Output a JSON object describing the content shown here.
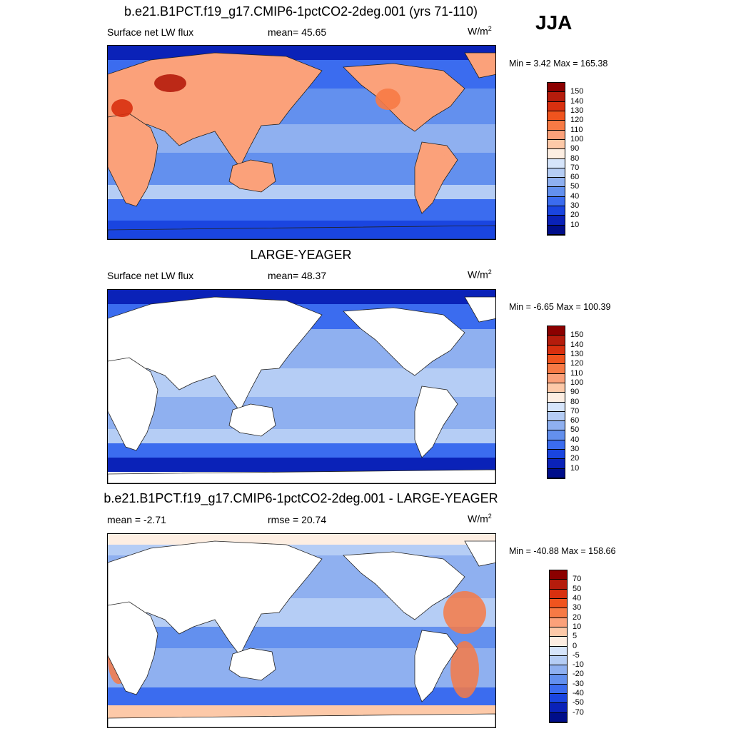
{
  "season": "JJA",
  "panels": [
    {
      "id": "model",
      "title": "b.e21.B1PCT.f19_g17.CMIP6-1pctCO2-2deg.001 (yrs 71-110)",
      "left_label": "Surface net LW flux",
      "center_label": "mean=  45.65",
      "units_base": "W/m",
      "units_exp": "2",
      "minmax": "Min =   3.42 Max = 165.38",
      "land_masked": false
    },
    {
      "id": "obs",
      "title": "LARGE-YEAGER",
      "left_label": "Surface net LW flux",
      "center_label": "mean=  48.37",
      "units_base": "W/m",
      "units_exp": "2",
      "minmax": "Min =  -6.65 Max = 100.39",
      "land_masked": true
    },
    {
      "id": "diff",
      "title": "b.e21.B1PCT.f19_g17.CMIP6-1pctCO2-2deg.001 - LARGE-YEAGER",
      "left_label": "mean =  -2.71",
      "center_label": "rmse =  20.74",
      "units_base": "W/m",
      "units_exp": "2",
      "minmax": "Min = -40.88 Max = 158.66",
      "land_masked": true
    }
  ],
  "colorbars": {
    "absolute": {
      "labels": [
        "150",
        "140",
        "130",
        "120",
        "110",
        "100",
        "90",
        "80",
        "70",
        "60",
        "50",
        "40",
        "30",
        "20",
        "10"
      ],
      "colors": [
        "#8b0000",
        "#b51c0c",
        "#d8300f",
        "#f0541e",
        "#f77a45",
        "#fba17a",
        "#fdc9a8",
        "#fdeee2",
        "#d6e5fb",
        "#b5cdf5",
        "#8fb0f0",
        "#6390ee",
        "#3b6cef",
        "#1a45e0",
        "#0a22b8",
        "#000e8a"
      ]
    },
    "difference": {
      "labels": [
        "70",
        "50",
        "40",
        "30",
        "20",
        "10",
        "5",
        "0",
        "-5",
        "-10",
        "-20",
        "-30",
        "-40",
        "-50",
        "-70"
      ],
      "colors": [
        "#8b0000",
        "#b51c0c",
        "#d8300f",
        "#f0541e",
        "#f77a45",
        "#fba17a",
        "#fdc9a8",
        "#fdeee2",
        "#d6e5fb",
        "#b5cdf5",
        "#8fb0f0",
        "#6390ee",
        "#3b6cef",
        "#1a45e0",
        "#0a22b8",
        "#000e8a"
      ]
    }
  }
}
